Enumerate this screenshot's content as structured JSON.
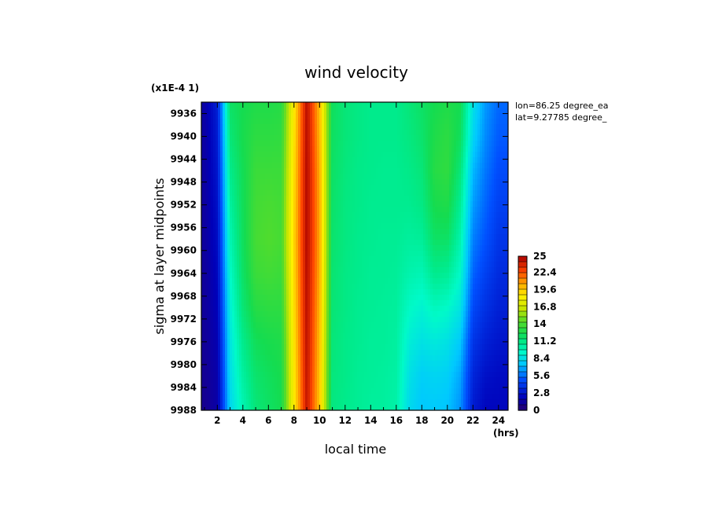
{
  "chart_data": {
    "type": "heatmap",
    "title": "wind velocity",
    "xlabel": "local time",
    "ylabel": "sigma at layer midpoints",
    "x_unit": "(hrs)",
    "y_scale_note": "(x1E-4 1)",
    "info_lines": [
      "lon=86.25 degree_ea",
      "lat=9.27785 degree_"
    ],
    "xlim": [
      0.75,
      24.75
    ],
    "ylim": [
      9934,
      9988
    ],
    "y_inverted": true,
    "x_ticks": [
      "2",
      "4",
      "6",
      "8",
      "10",
      "12",
      "14",
      "16",
      "18",
      "20",
      "22",
      "24"
    ],
    "x_tick_values": [
      2,
      4,
      6,
      8,
      10,
      12,
      14,
      16,
      18,
      20,
      22,
      24
    ],
    "y_ticks": [
      "9936",
      "9940",
      "9944",
      "9948",
      "9952",
      "9956",
      "9960",
      "9964",
      "9968",
      "9972",
      "9976",
      "9980",
      "9984",
      "9988"
    ],
    "y_tick_values": [
      9936,
      9940,
      9944,
      9948,
      9952,
      9956,
      9960,
      9964,
      9968,
      9972,
      9976,
      9980,
      9984,
      9988
    ],
    "colorbar": {
      "ticks": [
        "25",
        "22.4",
        "19.6",
        "16.8",
        "14",
        "11.2",
        "8.4",
        "5.6",
        "2.8",
        "0"
      ],
      "tick_values": [
        25,
        22.4,
        19.6,
        16.8,
        14,
        11.2,
        8.4,
        5.6,
        2.8,
        0
      ],
      "min": 0,
      "max": 25
    },
    "hours": [
      1,
      2,
      3,
      4,
      5,
      6,
      7,
      8,
      9,
      10,
      11,
      12,
      13,
      14,
      15,
      16,
      17,
      18,
      19,
      20,
      21,
      22,
      23,
      24
    ],
    "sigma_levels": [
      9934,
      9940,
      9946,
      9952,
      9958,
      9964,
      9970,
      9976,
      9982,
      9988
    ],
    "values": [
      [
        1.5,
        1.4,
        1.4,
        1.3,
        1.3,
        1.2,
        1.2,
        1.1,
        1.0,
        0.9
      ],
      [
        3.2,
        3.0,
        2.8,
        2.6,
        2.4,
        2.2,
        2.0,
        1.8,
        1.6,
        1.5
      ],
      [
        12.0,
        11.5,
        11.0,
        10.5,
        10.0,
        9.5,
        9.0,
        8.6,
        8.3,
        8.0
      ],
      [
        12.5,
        12.6,
        12.4,
        12.3,
        12.2,
        12.0,
        11.6,
        11.0,
        10.5,
        10.0
      ],
      [
        12.8,
        13.2,
        13.6,
        13.8,
        13.9,
        13.6,
        13.0,
        12.3,
        11.8,
        11.5
      ],
      [
        12.8,
        13.2,
        13.6,
        14.0,
        14.2,
        13.8,
        13.2,
        12.6,
        12.2,
        12.0
      ],
      [
        13.0,
        13.3,
        13.6,
        13.8,
        13.9,
        13.6,
        13.2,
        12.8,
        12.6,
        12.5
      ],
      [
        18.5,
        18.8,
        19.0,
        19.2,
        19.3,
        19.2,
        19.0,
        18.8,
        18.6,
        18.5
      ],
      [
        24.5,
        24.6,
        24.7,
        24.7,
        24.7,
        24.6,
        24.5,
        24.4,
        24.3,
        24.2
      ],
      [
        20.0,
        20.2,
        20.4,
        20.5,
        20.5,
        20.4,
        20.2,
        20.0,
        19.8,
        19.7
      ],
      [
        12.2,
        12.1,
        12.0,
        11.9,
        11.8,
        11.7,
        11.6,
        11.5,
        11.4,
        11.3
      ],
      [
        11.5,
        11.5,
        11.4,
        11.3,
        11.3,
        11.2,
        11.2,
        11.1,
        11.1,
        11.0
      ],
      [
        11.2,
        11.2,
        11.1,
        11.1,
        11.0,
        11.0,
        10.9,
        10.9,
        10.8,
        10.8
      ],
      [
        11.0,
        11.0,
        11.0,
        10.9,
        10.9,
        10.8,
        10.8,
        10.7,
        10.7,
        10.6
      ],
      [
        11.0,
        11.0,
        10.9,
        10.9,
        10.8,
        10.8,
        10.7,
        10.7,
        10.6,
        10.6
      ],
      [
        11.0,
        11.0,
        10.9,
        10.9,
        10.8,
        10.7,
        10.6,
        10.5,
        10.4,
        10.3
      ],
      [
        11.5,
        11.3,
        11.1,
        10.9,
        10.6,
        10.2,
        9.6,
        9.0,
        8.5,
        8.2
      ],
      [
        12.0,
        11.8,
        11.5,
        11.2,
        10.7,
        10.0,
        9.2,
        8.5,
        7.8,
        7.5
      ],
      [
        12.5,
        12.8,
        13.0,
        12.6,
        12.0,
        11.0,
        9.8,
        8.8,
        8.0,
        7.6
      ],
      [
        12.8,
        13.2,
        13.3,
        12.8,
        12.0,
        10.8,
        9.5,
        8.5,
        7.8,
        7.4
      ],
      [
        12.5,
        12.2,
        11.5,
        10.8,
        10.2,
        9.5,
        8.6,
        7.6,
        6.8,
        6.4
      ],
      [
        8.5,
        8.0,
        7.2,
        6.6,
        6.0,
        5.4,
        4.7,
        4.0,
        3.4,
        3.0
      ],
      [
        6.5,
        6.2,
        5.8,
        5.4,
        5.0,
        4.4,
        3.8,
        3.2,
        2.6,
        2.2
      ],
      [
        5.5,
        5.2,
        4.8,
        4.4,
        4.0,
        3.6,
        3.2,
        2.8,
        2.4,
        2.2
      ]
    ]
  }
}
